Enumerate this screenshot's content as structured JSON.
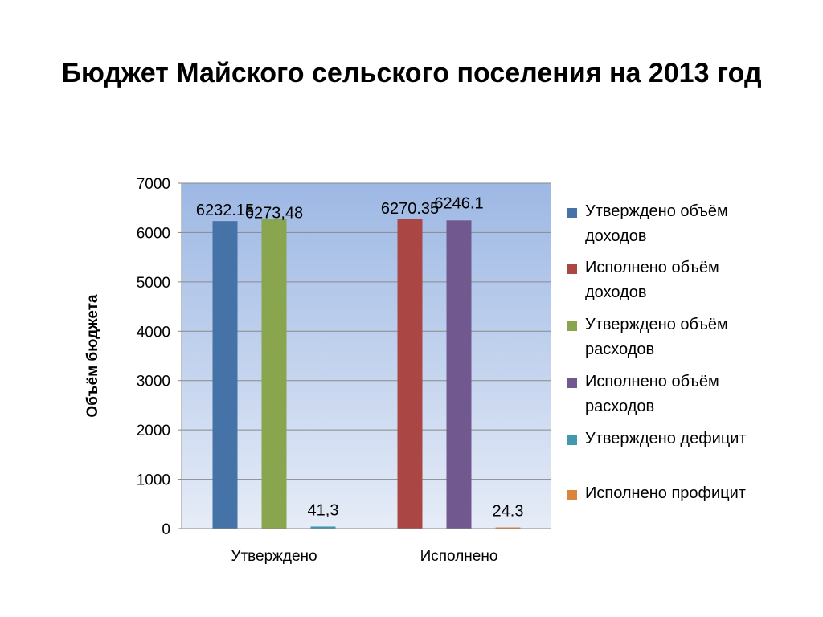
{
  "title": "Бюджет Майского сельского поселения на 2013 год",
  "chart_data": {
    "type": "bar",
    "categories": [
      "Утверждено",
      "Исполнено"
    ],
    "ylabel": "Объём бюджета",
    "xlabel": "",
    "ylim": [
      0,
      7000
    ],
    "yticks": [
      "0",
      "1000",
      "2000",
      "3000",
      "4000",
      "5000",
      "6000",
      "7000"
    ],
    "grid": true,
    "legend_position": "right",
    "series": [
      {
        "name": "Утверждено объём\nдоходов",
        "color": "#4572a7",
        "values": [
          6232.15,
          null
        ],
        "labels": [
          "6232.15",
          ""
        ]
      },
      {
        "name": "Исполнено объём\nдоходов",
        "color": "#aa4643",
        "values": [
          null,
          6270.35
        ],
        "labels": [
          "",
          "6270.35"
        ]
      },
      {
        "name": "Утверждено объём\nрасходов",
        "color": "#89a54e",
        "values": [
          6273.48,
          null
        ],
        "labels": [
          "6273,48",
          ""
        ]
      },
      {
        "name": "Исполнено   объём\nрасходов",
        "color": "#71588f",
        "values": [
          null,
          6246.1
        ],
        "labels": [
          "",
          "6246.1"
        ]
      },
      {
        "name": "Утверждено дефицит",
        "color": "#4198af",
        "values": [
          41.3,
          null
        ],
        "labels": [
          "41,3",
          ""
        ]
      },
      {
        "name": "Исполнено профицит",
        "color": "#db843d",
        "values": [
          null,
          24.3
        ],
        "labels": [
          "",
          "24.3"
        ]
      }
    ]
  }
}
